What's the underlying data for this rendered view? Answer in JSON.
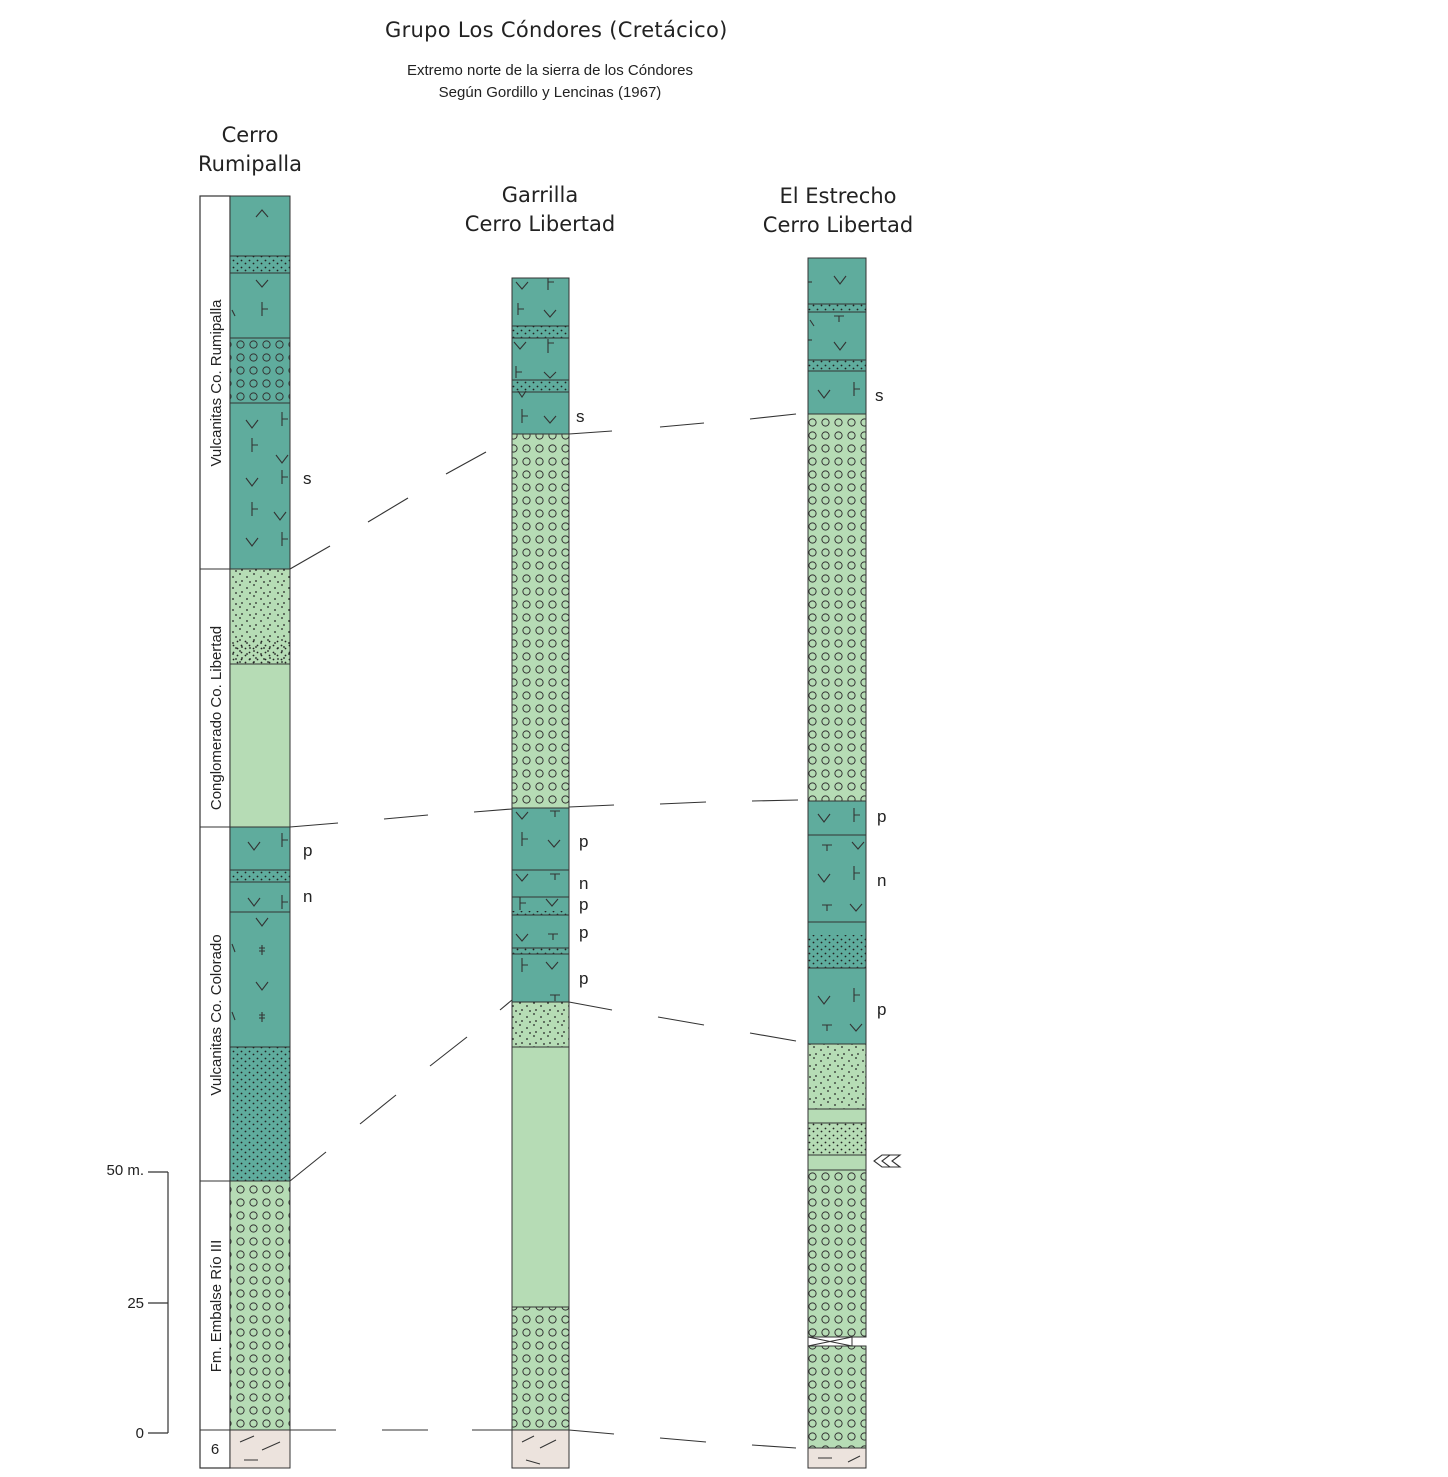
{
  "header": {
    "title": "Grupo Los Cóndores (Cretácico)",
    "subtitle_line1": "Extremo norte de la sierra de los Cóndores",
    "subtitle_line2": "Según Gordillo y Lencinas (1967)"
  },
  "columns": [
    {
      "id": "rumipalla",
      "title_line1": "Cerro",
      "title_line2": "Rumipalla"
    },
    {
      "id": "garrilla",
      "title_line1": "Garrilla",
      "title_line2": "Cerro Libertad"
    },
    {
      "id": "estrecho",
      "title_line1": "El Estrecho",
      "title_line2": "Cerro Libertad"
    }
  ],
  "formations": [
    "Vulcanitas Co. Rumipalla",
    "Conglomerado Co. Libertad",
    "Vulcanitas Co. Colorado",
    "Fm. Embalse Río III",
    "6"
  ],
  "scale": {
    "labels": [
      "50 m.",
      "25",
      "0"
    ]
  },
  "colors": {
    "volcanic": "#5fac9d",
    "conglomerate": "#b6dcb5",
    "basement": "#ece3dd",
    "line": "#333333"
  },
  "bed_labels": {
    "rumipalla": [
      "s",
      "p",
      "n"
    ],
    "garrilla": [
      "s",
      "p",
      "n",
      "p",
      "p",
      "p"
    ],
    "estrecho": [
      "s",
      "p",
      "n",
      "p"
    ]
  }
}
